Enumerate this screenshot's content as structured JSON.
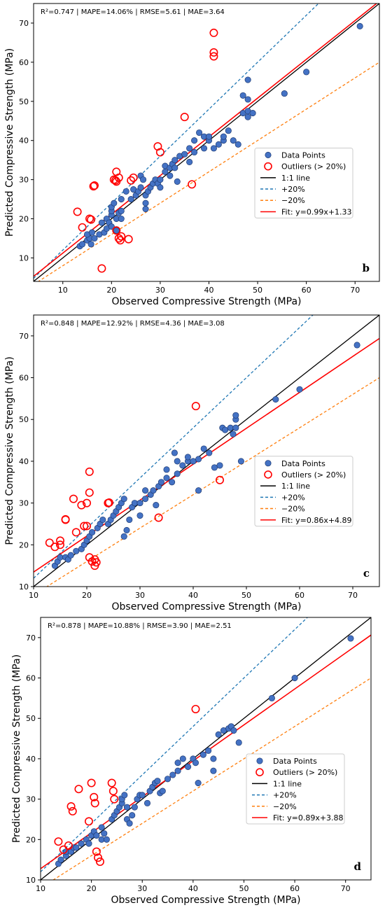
{
  "figure": {
    "legend_labels": {
      "points": "Data Points",
      "outliers": "Outliers (> 20%)",
      "identity": "1:1 line",
      "plus": "+20%",
      "minus": "−20%"
    },
    "xlabel": "Observed Compressive Strength (MPa)",
    "ylabel": "Predicted Compressive Strength (MPa)"
  },
  "colors": {
    "points_fill": "#4472c4",
    "points_edge": "#1f3b73",
    "outlier": "#ff0000",
    "identity": "#000000",
    "plus20": "#1f77b4",
    "minus20": "#ff7f0e",
    "fit": "#ff0000"
  },
  "chart_data": [
    {
      "type": "scatter",
      "panel_label": "b",
      "metrics_text": "R²=0.747 | MAPE=14.06% | RMSE=5.61 | MAE=3.64",
      "fit_label": "Fit: y=0.99x+1.33",
      "fit": {
        "slope": 0.99,
        "intercept": 1.33
      },
      "xlim": [
        4,
        75
      ],
      "ylim": [
        4,
        75
      ],
      "xticks": [
        10,
        20,
        30,
        40,
        50,
        60,
        70
      ],
      "yticks": [
        10,
        20,
        30,
        40,
        50,
        60,
        70
      ],
      "legend_position": "center-right",
      "points": [
        [
          13.5,
          13
        ],
        [
          14,
          13.5
        ],
        [
          15,
          14.5
        ],
        [
          15.5,
          15
        ],
        [
          15,
          16
        ],
        [
          16,
          16.5
        ],
        [
          16.5,
          15
        ],
        [
          15.8,
          13.5
        ],
        [
          17.5,
          16
        ],
        [
          18,
          19
        ],
        [
          18.5,
          16.5
        ],
        [
          19,
          17.5
        ],
        [
          19,
          20
        ],
        [
          19.5,
          19
        ],
        [
          20,
          18
        ],
        [
          20,
          21
        ],
        [
          20,
          22
        ],
        [
          20,
          23
        ],
        [
          20.5,
          24
        ],
        [
          21,
          20
        ],
        [
          21.5,
          21.5
        ],
        [
          22,
          22
        ],
        [
          22,
          20
        ],
        [
          21,
          17
        ],
        [
          22,
          25
        ],
        [
          23,
          27
        ],
        [
          24,
          25
        ],
        [
          24.5,
          27.5
        ],
        [
          25,
          26
        ],
        [
          25.5,
          27
        ],
        [
          26,
          28
        ],
        [
          26,
          31
        ],
        [
          26.5,
          30
        ],
        [
          27,
          24
        ],
        [
          27,
          22.5
        ],
        [
          27,
          26
        ],
        [
          27.5,
          27
        ],
        [
          28,
          28
        ],
        [
          28.5,
          29
        ],
        [
          29,
          30
        ],
        [
          29.5,
          29
        ],
        [
          30,
          28
        ],
        [
          30,
          30
        ],
        [
          31,
          32
        ],
        [
          31,
          33.5
        ],
        [
          32,
          33
        ],
        [
          32,
          31
        ],
        [
          32.5,
          34
        ],
        [
          33,
          35
        ],
        [
          33,
          33
        ],
        [
          33.5,
          29.5
        ],
        [
          34,
          36
        ],
        [
          35,
          36.5
        ],
        [
          36,
          38
        ],
        [
          36,
          34.5
        ],
        [
          37,
          37
        ],
        [
          37,
          40
        ],
        [
          38,
          42
        ],
        [
          39,
          41
        ],
        [
          39,
          38
        ],
        [
          40,
          40
        ],
        [
          40,
          41
        ],
        [
          41,
          38
        ],
        [
          42,
          39
        ],
        [
          43,
          40
        ],
        [
          43,
          41
        ],
        [
          44,
          42.5
        ],
        [
          45,
          40
        ],
        [
          46,
          39
        ],
        [
          47,
          47
        ],
        [
          47,
          51.5
        ],
        [
          48,
          46
        ],
        [
          48,
          47.5
        ],
        [
          48,
          55.5
        ],
        [
          48,
          50.5
        ],
        [
          49,
          47
        ],
        [
          55.5,
          52
        ],
        [
          60,
          57.5
        ],
        [
          71,
          69.2
        ]
      ],
      "outliers": [
        [
          13,
          21.8
        ],
        [
          14,
          17.8
        ],
        [
          15.5,
          20
        ],
        [
          15.8,
          19.8
        ],
        [
          16.5,
          28.5
        ],
        [
          16.3,
          28.3
        ],
        [
          18,
          7.3
        ],
        [
          20.5,
          30
        ],
        [
          20.8,
          29.8
        ],
        [
          21,
          32
        ],
        [
          21,
          29.5
        ],
        [
          21.5,
          30.5
        ],
        [
          21,
          17
        ],
        [
          21.5,
          15
        ],
        [
          21.8,
          14.5
        ],
        [
          22,
          15.5
        ],
        [
          23.5,
          14.8
        ],
        [
          24,
          29.8
        ],
        [
          24.5,
          30.5
        ],
        [
          29.5,
          38.5
        ],
        [
          30,
          37
        ],
        [
          35,
          46
        ],
        [
          36.5,
          28.8
        ],
        [
          41,
          67.5
        ],
        [
          41,
          62.5
        ],
        [
          41,
          61.5
        ]
      ]
    },
    {
      "type": "scatter",
      "panel_label": "c",
      "metrics_text": "R²=0.848 | MAPE=12.92% | RMSE=4.36 | MAE=3.08",
      "fit_label": "Fit: y=0.86x+4.89",
      "fit": {
        "slope": 0.86,
        "intercept": 4.89
      },
      "xlim": [
        10,
        75
      ],
      "ylim": [
        10,
        75
      ],
      "xticks": [
        10,
        20,
        30,
        40,
        50,
        60,
        70
      ],
      "yticks": [
        10,
        20,
        30,
        40,
        50,
        60,
        70
      ],
      "legend_position": "center-right",
      "points": [
        [
          14,
          15
        ],
        [
          14.5,
          16
        ],
        [
          15,
          17
        ],
        [
          16,
          17
        ],
        [
          16.5,
          16.5
        ],
        [
          17,
          17.5
        ],
        [
          18,
          18.5
        ],
        [
          19,
          19
        ],
        [
          19.5,
          20
        ],
        [
          20,
          21
        ],
        [
          20.5,
          22
        ],
        [
          21,
          23
        ],
        [
          22,
          24
        ],
        [
          22.5,
          25
        ],
        [
          23,
          26
        ],
        [
          24,
          25
        ],
        [
          24.5,
          26
        ],
        [
          25,
          27
        ],
        [
          25.5,
          28
        ],
        [
          26,
          29
        ],
        [
          26.5,
          30
        ],
        [
          27,
          31
        ],
        [
          27,
          22
        ],
        [
          27.5,
          23.5
        ],
        [
          28,
          26
        ],
        [
          28.5,
          29
        ],
        [
          29,
          30
        ],
        [
          30,
          30
        ],
        [
          30,
          27
        ],
        [
          31,
          31
        ],
        [
          31,
          33
        ],
        [
          32,
          32
        ],
        [
          32.5,
          33
        ],
        [
          33,
          29.5
        ],
        [
          33.5,
          34
        ],
        [
          34,
          35
        ],
        [
          35,
          36
        ],
        [
          35,
          38
        ],
        [
          36,
          35
        ],
        [
          36.5,
          42
        ],
        [
          37,
          40
        ],
        [
          37,
          37
        ],
        [
          38,
          39
        ],
        [
          39,
          40
        ],
        [
          39,
          41
        ],
        [
          40,
          40
        ],
        [
          41,
          33
        ],
        [
          41,
          40.5
        ],
        [
          42,
          43
        ],
        [
          43,
          42
        ],
        [
          44,
          38.5
        ],
        [
          45,
          39
        ],
        [
          45.5,
          48
        ],
        [
          46,
          47.5
        ],
        [
          47,
          48
        ],
        [
          47.5,
          46.5
        ],
        [
          48,
          50
        ],
        [
          48,
          51
        ],
        [
          48,
          48
        ],
        [
          49,
          40
        ],
        [
          55.5,
          54.8
        ],
        [
          60,
          57.2
        ],
        [
          70.8,
          67.8
        ]
      ],
      "outliers": [
        [
          13,
          20.5
        ],
        [
          14,
          19.5
        ],
        [
          15,
          21
        ],
        [
          15,
          20
        ],
        [
          16,
          26
        ],
        [
          16,
          26.1
        ],
        [
          17.5,
          31
        ],
        [
          18,
          23
        ],
        [
          19,
          29.5
        ],
        [
          19.5,
          24.5
        ],
        [
          20,
          30
        ],
        [
          20,
          24.5
        ],
        [
          20.5,
          37.5
        ],
        [
          20.5,
          32.5
        ],
        [
          20.5,
          17
        ],
        [
          21,
          16
        ],
        [
          21.5,
          16.5
        ],
        [
          21.5,
          15
        ],
        [
          21.8,
          15.8
        ],
        [
          24,
          30
        ],
        [
          24.2,
          30.1
        ],
        [
          33.5,
          26.5
        ],
        [
          40.5,
          53.2
        ],
        [
          45,
          35.5
        ]
      ]
    },
    {
      "type": "scatter",
      "panel_label": "d",
      "metrics_text": "R²=0.878 | MAPE=10.88% | RMSE=3.90 | MAE=2.51",
      "fit_label": "Fit: y=0.89x+3.88",
      "fit": {
        "slope": 0.89,
        "intercept": 3.88
      },
      "xlim": [
        10,
        75
      ],
      "ylim": [
        10,
        75
      ],
      "xticks": [
        10,
        20,
        30,
        40,
        50,
        60,
        70
      ],
      "yticks": [
        10,
        20,
        30,
        40,
        50,
        60,
        70
      ],
      "legend_position": "center-right",
      "points": [
        [
          13.5,
          14
        ],
        [
          14,
          15
        ],
        [
          15,
          16
        ],
        [
          15,
          17
        ],
        [
          16,
          17
        ],
        [
          16.5,
          18
        ],
        [
          17,
          18
        ],
        [
          18,
          19
        ],
        [
          19,
          20
        ],
        [
          19.5,
          19
        ],
        [
          20,
          21
        ],
        [
          20.5,
          22
        ],
        [
          21,
          21
        ],
        [
          22,
          23
        ],
        [
          22,
          20
        ],
        [
          22.5,
          21.5
        ],
        [
          23,
          20
        ],
        [
          24,
          25
        ],
        [
          24.5,
          26
        ],
        [
          25,
          27
        ],
        [
          25.5,
          28
        ],
        [
          26,
          29
        ],
        [
          26,
          30
        ],
        [
          26.5,
          31
        ],
        [
          27,
          28
        ],
        [
          27,
          25
        ],
        [
          27.5,
          24
        ],
        [
          28,
          26
        ],
        [
          28.5,
          28
        ],
        [
          29,
          30
        ],
        [
          29.5,
          31
        ],
        [
          30,
          31
        ],
        [
          31,
          29
        ],
        [
          31.5,
          32
        ],
        [
          32,
          33
        ],
        [
          32.5,
          34
        ],
        [
          33,
          34.5
        ],
        [
          33.5,
          31.5
        ],
        [
          34,
          32
        ],
        [
          35,
          35
        ],
        [
          36,
          36
        ],
        [
          37,
          37
        ],
        [
          37,
          39
        ],
        [
          38,
          40
        ],
        [
          39,
          38
        ],
        [
          40,
          40
        ],
        [
          40.5,
          39
        ],
        [
          41,
          34
        ],
        [
          42,
          41
        ],
        [
          43,
          42
        ],
        [
          44,
          40
        ],
        [
          44,
          37
        ],
        [
          45,
          46
        ],
        [
          46,
          47
        ],
        [
          47,
          47.5
        ],
        [
          47.5,
          48
        ],
        [
          48,
          47
        ],
        [
          49,
          44
        ],
        [
          55.5,
          55
        ],
        [
          60,
          60
        ],
        [
          71,
          69.8
        ]
      ],
      "outliers": [
        [
          13.5,
          19.5
        ],
        [
          14.5,
          17.5
        ],
        [
          15.5,
          18.5
        ],
        [
          16,
          28.2
        ],
        [
          16.3,
          27
        ],
        [
          17.5,
          32.5
        ],
        [
          19.5,
          24.5
        ],
        [
          20,
          34
        ],
        [
          20.5,
          30.5
        ],
        [
          20.7,
          29
        ],
        [
          21,
          17
        ],
        [
          21.3,
          15.5
        ],
        [
          21.7,
          14.5
        ],
        [
          24,
          34
        ],
        [
          24.3,
          32
        ],
        [
          24.5,
          30
        ],
        [
          40.5,
          52.3
        ]
      ]
    }
  ]
}
